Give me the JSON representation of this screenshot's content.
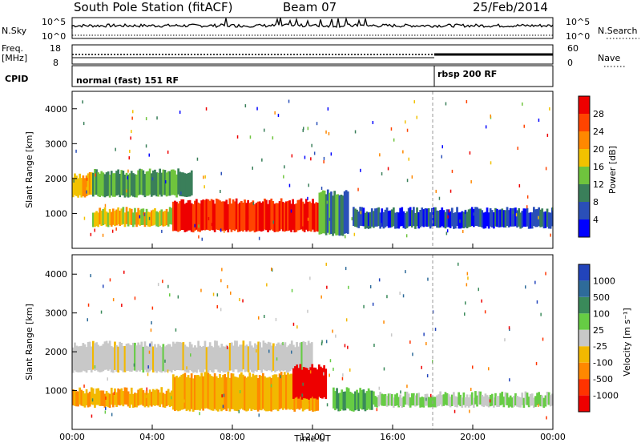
{
  "header": {
    "station": "South Pole Station (fitACF)",
    "beam": "Beam 07",
    "date": "25/Feb/2014"
  },
  "strip_nsky": {
    "left_label": "N.Sky",
    "right_label": "N.Search",
    "left_ticks": [
      "10^5",
      "10^0"
    ],
    "right_ticks": [
      "10^5",
      "10^0"
    ]
  },
  "strip_freq": {
    "left_label_1": "Freq.",
    "left_label_2": "[MHz]",
    "right_label": "Nave",
    "left_ticks": [
      "18",
      "8"
    ],
    "right_ticks": [
      "60",
      "0"
    ]
  },
  "strip_cpid": {
    "label": "CPID",
    "segments": [
      {
        "label": "normal (fast) 151 RF",
        "start_hour": 0
      },
      {
        "label": "rbsp 200 RF",
        "start_hour": 18.0
      }
    ]
  },
  "x_axis": {
    "label": "Time UT",
    "ticks": [
      "00:00",
      "04:00",
      "08:00",
      "12:00",
      "16:00",
      "20:00",
      "00:00"
    ]
  },
  "power_panel": {
    "ylabel": "Slant Range [km]",
    "yticks": [
      "1000",
      "2000",
      "3000",
      "4000"
    ],
    "colorbar_label": "Power [dB]",
    "colorbar_ticks": [
      "4",
      "8",
      "12",
      "16",
      "20",
      "24",
      "28"
    ],
    "colors": [
      "#0000ff",
      "#2a4fb8",
      "#3a7f5a",
      "#6fc43d",
      "#f2c200",
      "#ff8800",
      "#ff4400",
      "#ee0000"
    ]
  },
  "velocity_panel": {
    "ylabel": "Slant Range [km]",
    "yticks": [
      "1000",
      "2000",
      "3000",
      "4000"
    ],
    "colorbar_label": "Velocity [m s⁻¹]",
    "colorbar_ticks": [
      "1000",
      "500",
      "100",
      "25",
      "-25",
      "-100",
      "-500",
      "-1000"
    ],
    "colors": [
      "#2244bb",
      "#2e6b9a",
      "#3a8a5a",
      "#66cc44",
      "#c8c8c8",
      "#f2b800",
      "#ff8800",
      "#ff3300",
      "#ee0000"
    ]
  },
  "chart_data": [
    {
      "type": "heatmap",
      "title": "Power",
      "xlabel": "Time UT",
      "ylabel": "Slant Range [km]",
      "xlim": [
        0,
        24
      ],
      "ylim": [
        0,
        4500
      ],
      "colorbar": {
        "label": "Power [dB]",
        "range": [
          0,
          32
        ]
      },
      "regions": [
        {
          "t0": 0.0,
          "t1": 1.0,
          "r0": 1500,
          "r1": 2100,
          "value": 20
        },
        {
          "t0": 1.0,
          "t1": 6.0,
          "r0": 1500,
          "r1": 2200,
          "value": 12
        },
        {
          "t0": 1.0,
          "t1": 5.0,
          "r0": 650,
          "r1": 1100,
          "value": 18
        },
        {
          "t0": 5.0,
          "t1": 12.3,
          "r0": 500,
          "r1": 1350,
          "value": 28
        },
        {
          "t0": 12.3,
          "t1": 13.8,
          "r0": 400,
          "r1": 1600,
          "value": 10
        },
        {
          "t0": 14.0,
          "t1": 24.0,
          "r0": 600,
          "r1": 1100,
          "value": 6
        }
      ]
    },
    {
      "type": "heatmap",
      "title": "Velocity",
      "xlabel": "Time UT",
      "ylabel": "Slant Range [km]",
      "xlim": [
        0,
        24
      ],
      "ylim": [
        0,
        4500
      ],
      "colorbar": {
        "label": "Velocity [m s⁻¹]",
        "range": [
          -1000,
          1000
        ]
      },
      "regions": [
        {
          "t0": 0.0,
          "t1": 12.0,
          "r0": 1500,
          "r1": 2200,
          "value": 0
        },
        {
          "t0": 0.0,
          "t1": 5.0,
          "r0": 600,
          "r1": 1000,
          "value": -300
        },
        {
          "t0": 5.0,
          "t1": 12.3,
          "r0": 500,
          "r1": 1400,
          "value": -300
        },
        {
          "t0": 11.0,
          "t1": 12.7,
          "r0": 800,
          "r1": 1600,
          "value": -1000
        },
        {
          "t0": 13.0,
          "t1": 15.0,
          "r0": 500,
          "r1": 1000,
          "value": 300
        },
        {
          "t0": 15.0,
          "t1": 24.0,
          "r0": 600,
          "r1": 900,
          "value": 100
        }
      ]
    }
  ]
}
